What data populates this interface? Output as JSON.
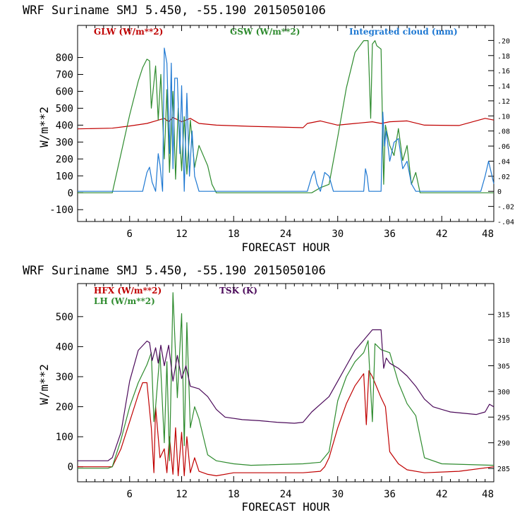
{
  "chart_data": [
    {
      "type": "line",
      "title": "WRF   Suriname SMJ   5.450, -55.190  2015050106",
      "xlabel": "FORECAST HOUR",
      "ylabel": "W/m**2",
      "xlim": [
        0,
        48
      ],
      "ylim": [
        -170,
        990
      ],
      "y2lim": [
        -0.04,
        0.22
      ],
      "xticks": [
        "6",
        "12",
        "18",
        "24",
        "30",
        "36",
        "42",
        "48"
      ],
      "yticks": [
        "-100",
        "0",
        "100",
        "200",
        "300",
        "400",
        "500",
        "600",
        "700",
        "800"
      ],
      "y2ticks": [
        ".20",
        ".18",
        ".16",
        ".14",
        ".12",
        ".10",
        ".08",
        ".06",
        ".04",
        ".02",
        "0",
        "-.02",
        "-.04"
      ],
      "legend": [
        "GLW (W/m**2)",
        "GSW (W/m**2)",
        "Integrated cloud (mm)"
      ],
      "series": [
        {
          "name": "GLW (W/m**2)",
          "color": "#c00000",
          "axis": "left",
          "x": [
            0,
            4,
            6,
            8,
            9,
            10,
            10.5,
            11,
            12,
            13,
            14,
            16,
            20,
            26,
            26.5,
            28,
            30,
            32,
            34,
            35,
            36,
            38,
            40,
            44,
            47,
            48
          ],
          "y": [
            378,
            382,
            395,
            410,
            425,
            440,
            420,
            445,
            420,
            440,
            410,
            400,
            393,
            385,
            410,
            425,
            400,
            410,
            420,
            410,
            420,
            425,
            400,
            398,
            440,
            430
          ]
        },
        {
          "name": "GSW (W/m**2)",
          "color": "#2e8b2e",
          "axis": "left",
          "x": [
            0,
            3.5,
            4,
            5,
            6,
            7,
            7.5,
            8,
            8.3,
            8.5,
            9,
            9.3,
            9.6,
            10,
            10.3,
            10.6,
            11,
            11.3,
            11.6,
            12,
            12.3,
            12.6,
            13,
            13.5,
            14,
            15,
            15.5,
            16,
            27,
            28,
            29,
            30,
            31,
            32,
            33,
            33.5,
            33.8,
            34,
            34.3,
            34.5,
            35,
            35.3,
            35.5,
            36,
            36.5,
            37,
            37.5,
            38,
            38.5,
            39,
            39.5,
            40,
            48
          ],
          "y": [
            0,
            0,
            0,
            230,
            460,
            660,
            740,
            790,
            780,
            500,
            750,
            430,
            700,
            200,
            610,
            120,
            600,
            80,
            500,
            130,
            450,
            110,
            430,
            150,
            280,
            160,
            50,
            0,
            0,
            30,
            50,
            330,
            620,
            830,
            900,
            900,
            440,
            880,
            900,
            870,
            850,
            50,
            400,
            280,
            220,
            380,
            190,
            280,
            50,
            120,
            0,
            0,
            0
          ]
        },
        {
          "name": "Integrated cloud (mm)",
          "color": "#1e78d2",
          "axis": "right",
          "x": [
            0,
            7.5,
            8,
            8.3,
            8.6,
            9,
            9.3,
            9.5,
            9.8,
            10,
            10.3,
            10.6,
            10.8,
            11,
            11.2,
            11.5,
            11.8,
            12,
            12.3,
            12.6,
            12.9,
            13.2,
            13.5,
            14,
            15,
            26.5,
            27,
            27.3,
            27.6,
            28,
            28.5,
            29,
            29.5,
            33,
            33.2,
            33.4,
            33.6,
            34,
            35,
            35.2,
            35.4,
            35.6,
            36,
            36.5,
            37,
            37.5,
            38,
            38.5,
            39,
            39.5,
            46.5,
            47,
            47.4,
            47.7,
            48
          ],
          "y": [
            0,
            0,
            0.025,
            0.032,
            0.012,
            0.0,
            0.05,
            0.035,
            0.0,
            0.19,
            0.17,
            0.05,
            0.17,
            0.03,
            0.15,
            0.15,
            0.05,
            0.14,
            0.0,
            0.13,
            0.02,
            0.08,
            0.02,
            0.0,
            0.0,
            0.0,
            0.02,
            0.027,
            0.01,
            0.0,
            0.025,
            0.02,
            0.0,
            0.0,
            0.03,
            0.02,
            0.0,
            0.0,
            0.0,
            0.105,
            0.06,
            0.08,
            0.04,
            0.065,
            0.07,
            0.03,
            0.04,
            0.01,
            0.0,
            0.0,
            0.0,
            0.02,
            0.04,
            0.025,
            0.01
          ]
        }
      ]
    },
    {
      "type": "line",
      "title": "WRF   Suriname SMJ   5.450, -55.190  2015050106",
      "xlabel": "FORECAST HOUR",
      "ylabel": "W/m**2",
      "xlim": [
        0,
        48
      ],
      "ylim": [
        -50,
        610
      ],
      "y2lim": [
        282.4,
        321
      ],
      "xticks": [
        "6",
        "12",
        "18",
        "24",
        "30",
        "36",
        "42",
        "48"
      ],
      "yticks": [
        "0",
        "100",
        "200",
        "300",
        "400",
        "500"
      ],
      "y2ticks": [
        "315",
        "310",
        "305",
        "300",
        "295",
        "290",
        "285"
      ],
      "legend": [
        "HFX (W/m**2)",
        "LH  (W/m**2)",
        "TSK (K)"
      ],
      "series": [
        {
          "name": "HFX (W/m**2)",
          "color": "#c00000",
          "axis": "left",
          "x": [
            0,
            3.5,
            4,
            5,
            6,
            7,
            7.5,
            8,
            8.5,
            8.8,
            9,
            9.5,
            10,
            10.3,
            10.6,
            11,
            11.3,
            11.6,
            12,
            12.3,
            12.6,
            13,
            13.5,
            14,
            15,
            16,
            18,
            26,
            28,
            28.5,
            29,
            30,
            31,
            32,
            33,
            33.3,
            33.6,
            34,
            35,
            35.5,
            36,
            37,
            38,
            40,
            44,
            48
          ],
          "y": [
            0,
            0,
            0,
            60,
            150,
            240,
            280,
            280,
            130,
            -20,
            200,
            30,
            60,
            -20,
            100,
            -25,
            130,
            -30,
            115,
            -30,
            100,
            -20,
            30,
            -15,
            -25,
            -30,
            -20,
            -20,
            -15,
            0,
            30,
            130,
            210,
            270,
            310,
            140,
            320,
            300,
            230,
            200,
            50,
            10,
            -10,
            -20,
            -15,
            0
          ]
        },
        {
          "name": "LH  (W/m**2)",
          "color": "#2e8b2e",
          "axis": "left",
          "x": [
            0,
            3.5,
            4,
            5,
            6,
            7,
            8,
            8.5,
            8.8,
            9,
            9.5,
            10,
            10.3,
            10.6,
            11,
            11.5,
            12,
            12.3,
            12.6,
            13,
            13.5,
            14,
            15,
            16,
            18,
            20,
            26,
            28,
            29,
            30,
            31,
            32,
            33,
            33.5,
            34,
            34.3,
            35,
            36,
            37,
            38,
            39,
            39.5,
            40,
            42,
            48
          ],
          "y": [
            -5,
            -5,
            0,
            90,
            200,
            280,
            340,
            380,
            150,
            200,
            380,
            80,
            350,
            20,
            580,
            230,
            510,
            70,
            480,
            130,
            200,
            160,
            40,
            20,
            10,
            5,
            10,
            15,
            50,
            220,
            300,
            350,
            380,
            420,
            150,
            410,
            390,
            380,
            280,
            210,
            170,
            100,
            30,
            10,
            5
          ]
        },
        {
          "name": "TSK (K)",
          "color": "#4b0a5a",
          "axis": "right",
          "x": [
            0,
            3.5,
            4,
            5,
            6,
            7,
            8,
            8.3,
            8.6,
            9,
            9.3,
            9.6,
            10,
            10.5,
            11,
            11.5,
            12,
            12.5,
            13,
            14,
            15,
            16,
            17,
            19,
            21,
            23,
            25,
            26,
            27,
            28,
            29,
            30,
            31,
            32,
            33,
            34,
            35,
            35.3,
            35.6,
            36,
            37,
            38,
            39,
            40,
            41,
            42,
            43,
            46,
            47,
            47.5,
            48
          ],
          "y": [
            286.5,
            286.5,
            287.1,
            292.0,
            302.0,
            308.0,
            309.8,
            309.5,
            306.0,
            308.5,
            305.5,
            309.0,
            305.0,
            309.0,
            302.0,
            307.0,
            302.5,
            305.0,
            301.0,
            300.5,
            299.0,
            296.5,
            295.0,
            294.5,
            294.3,
            294.0,
            293.8,
            294.0,
            296.0,
            297.5,
            299.0,
            302.0,
            305.0,
            308.0,
            310.0,
            312.0,
            312.0,
            304.5,
            306.5,
            305.5,
            304.5,
            303.0,
            301.0,
            298.5,
            297.0,
            296.5,
            296.0,
            295.5,
            296.0,
            297.5,
            297.0
          ]
        }
      ]
    }
  ]
}
